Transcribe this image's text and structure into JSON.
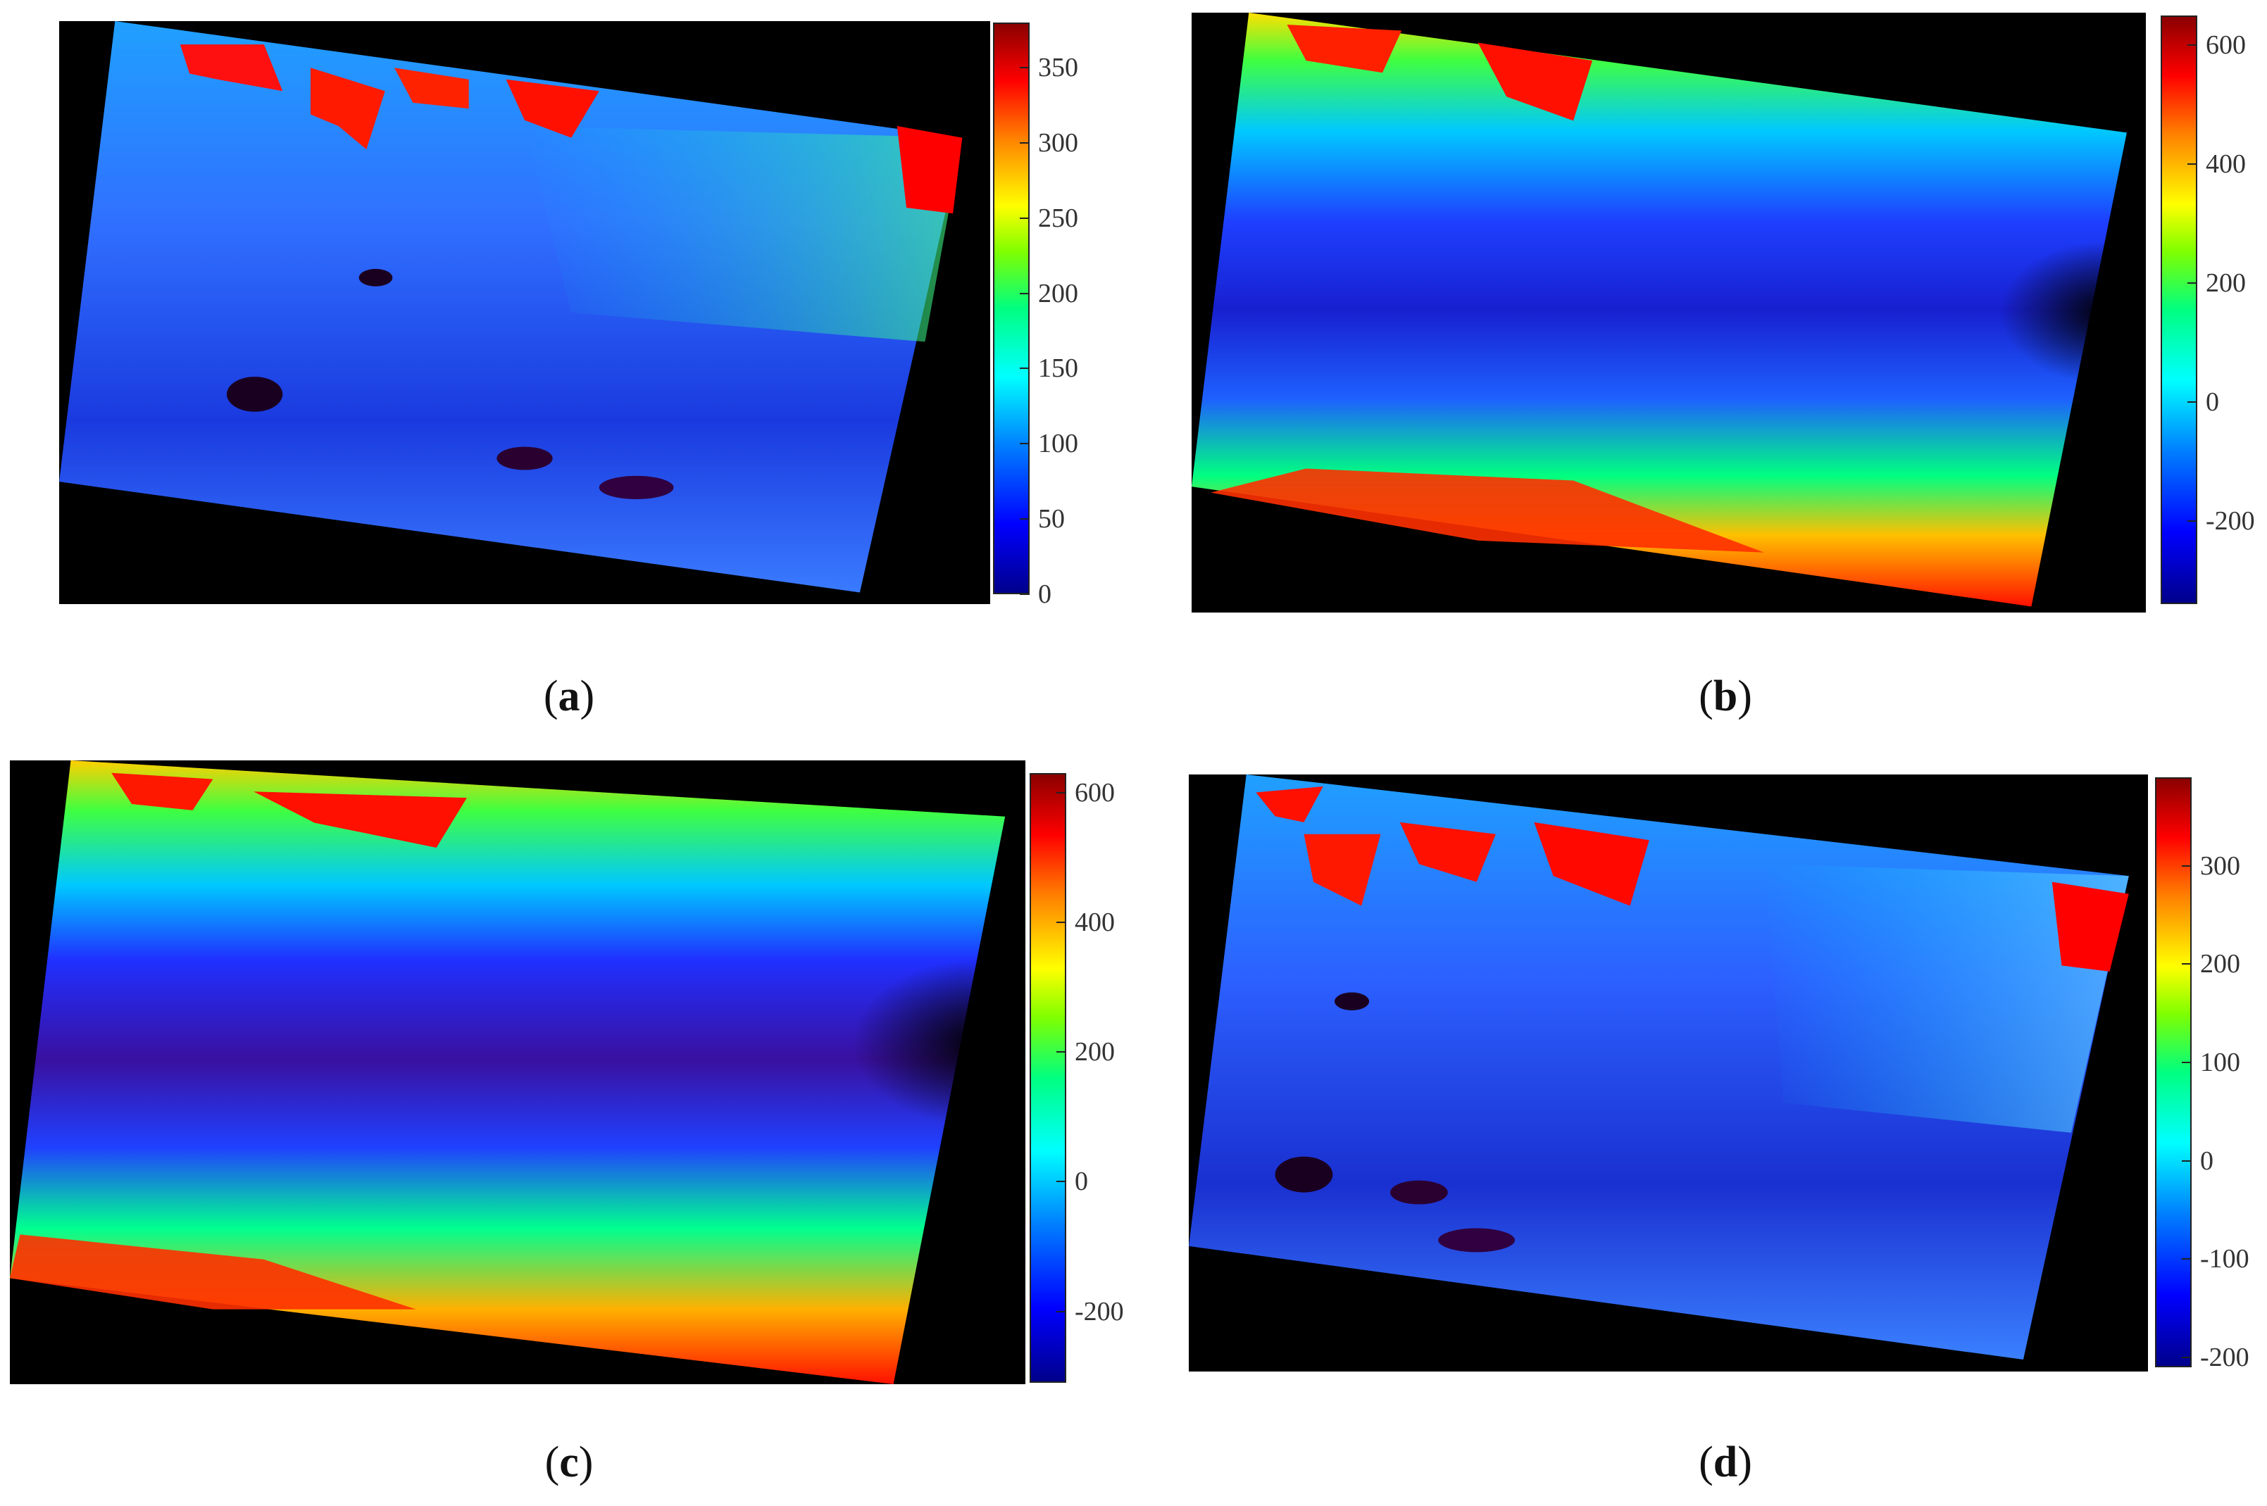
{
  "panels": [
    {
      "id": "a",
      "caption_letter": "a",
      "style": "speckle",
      "colorbar": {
        "min": 0,
        "max": 380,
        "ticks": [
          "0",
          "50",
          "100",
          "150",
          "200",
          "250",
          "300",
          "350"
        ],
        "tick_values": [
          0,
          50,
          100,
          150,
          200,
          250,
          300,
          350
        ]
      }
    },
    {
      "id": "b",
      "caption_letter": "b",
      "style": "smooth",
      "colorbar": {
        "min": -340,
        "max": 650,
        "ticks": [
          "-200",
          "0",
          "200",
          "400",
          "600"
        ],
        "tick_values": [
          -200,
          0,
          200,
          400,
          600
        ]
      }
    },
    {
      "id": "c",
      "caption_letter": "c",
      "style": "smooth",
      "colorbar": {
        "min": -310,
        "max": 630,
        "ticks": [
          "-200",
          "0",
          "200",
          "400",
          "600"
        ],
        "tick_values": [
          -200,
          0,
          200,
          400,
          600
        ]
      }
    },
    {
      "id": "d",
      "caption_letter": "d",
      "style": "speckle",
      "colorbar": {
        "min": -210,
        "max": 390,
        "ticks": [
          "-200",
          "-100",
          "0",
          "100",
          "200",
          "300"
        ],
        "tick_values": [
          -200,
          -100,
          0,
          100,
          200,
          300
        ]
      }
    }
  ],
  "colors": {
    "background": "#000000",
    "high": "#ff0000",
    "mid": "#00ff40",
    "low": "#0000cc",
    "deep": "#2a0030"
  }
}
